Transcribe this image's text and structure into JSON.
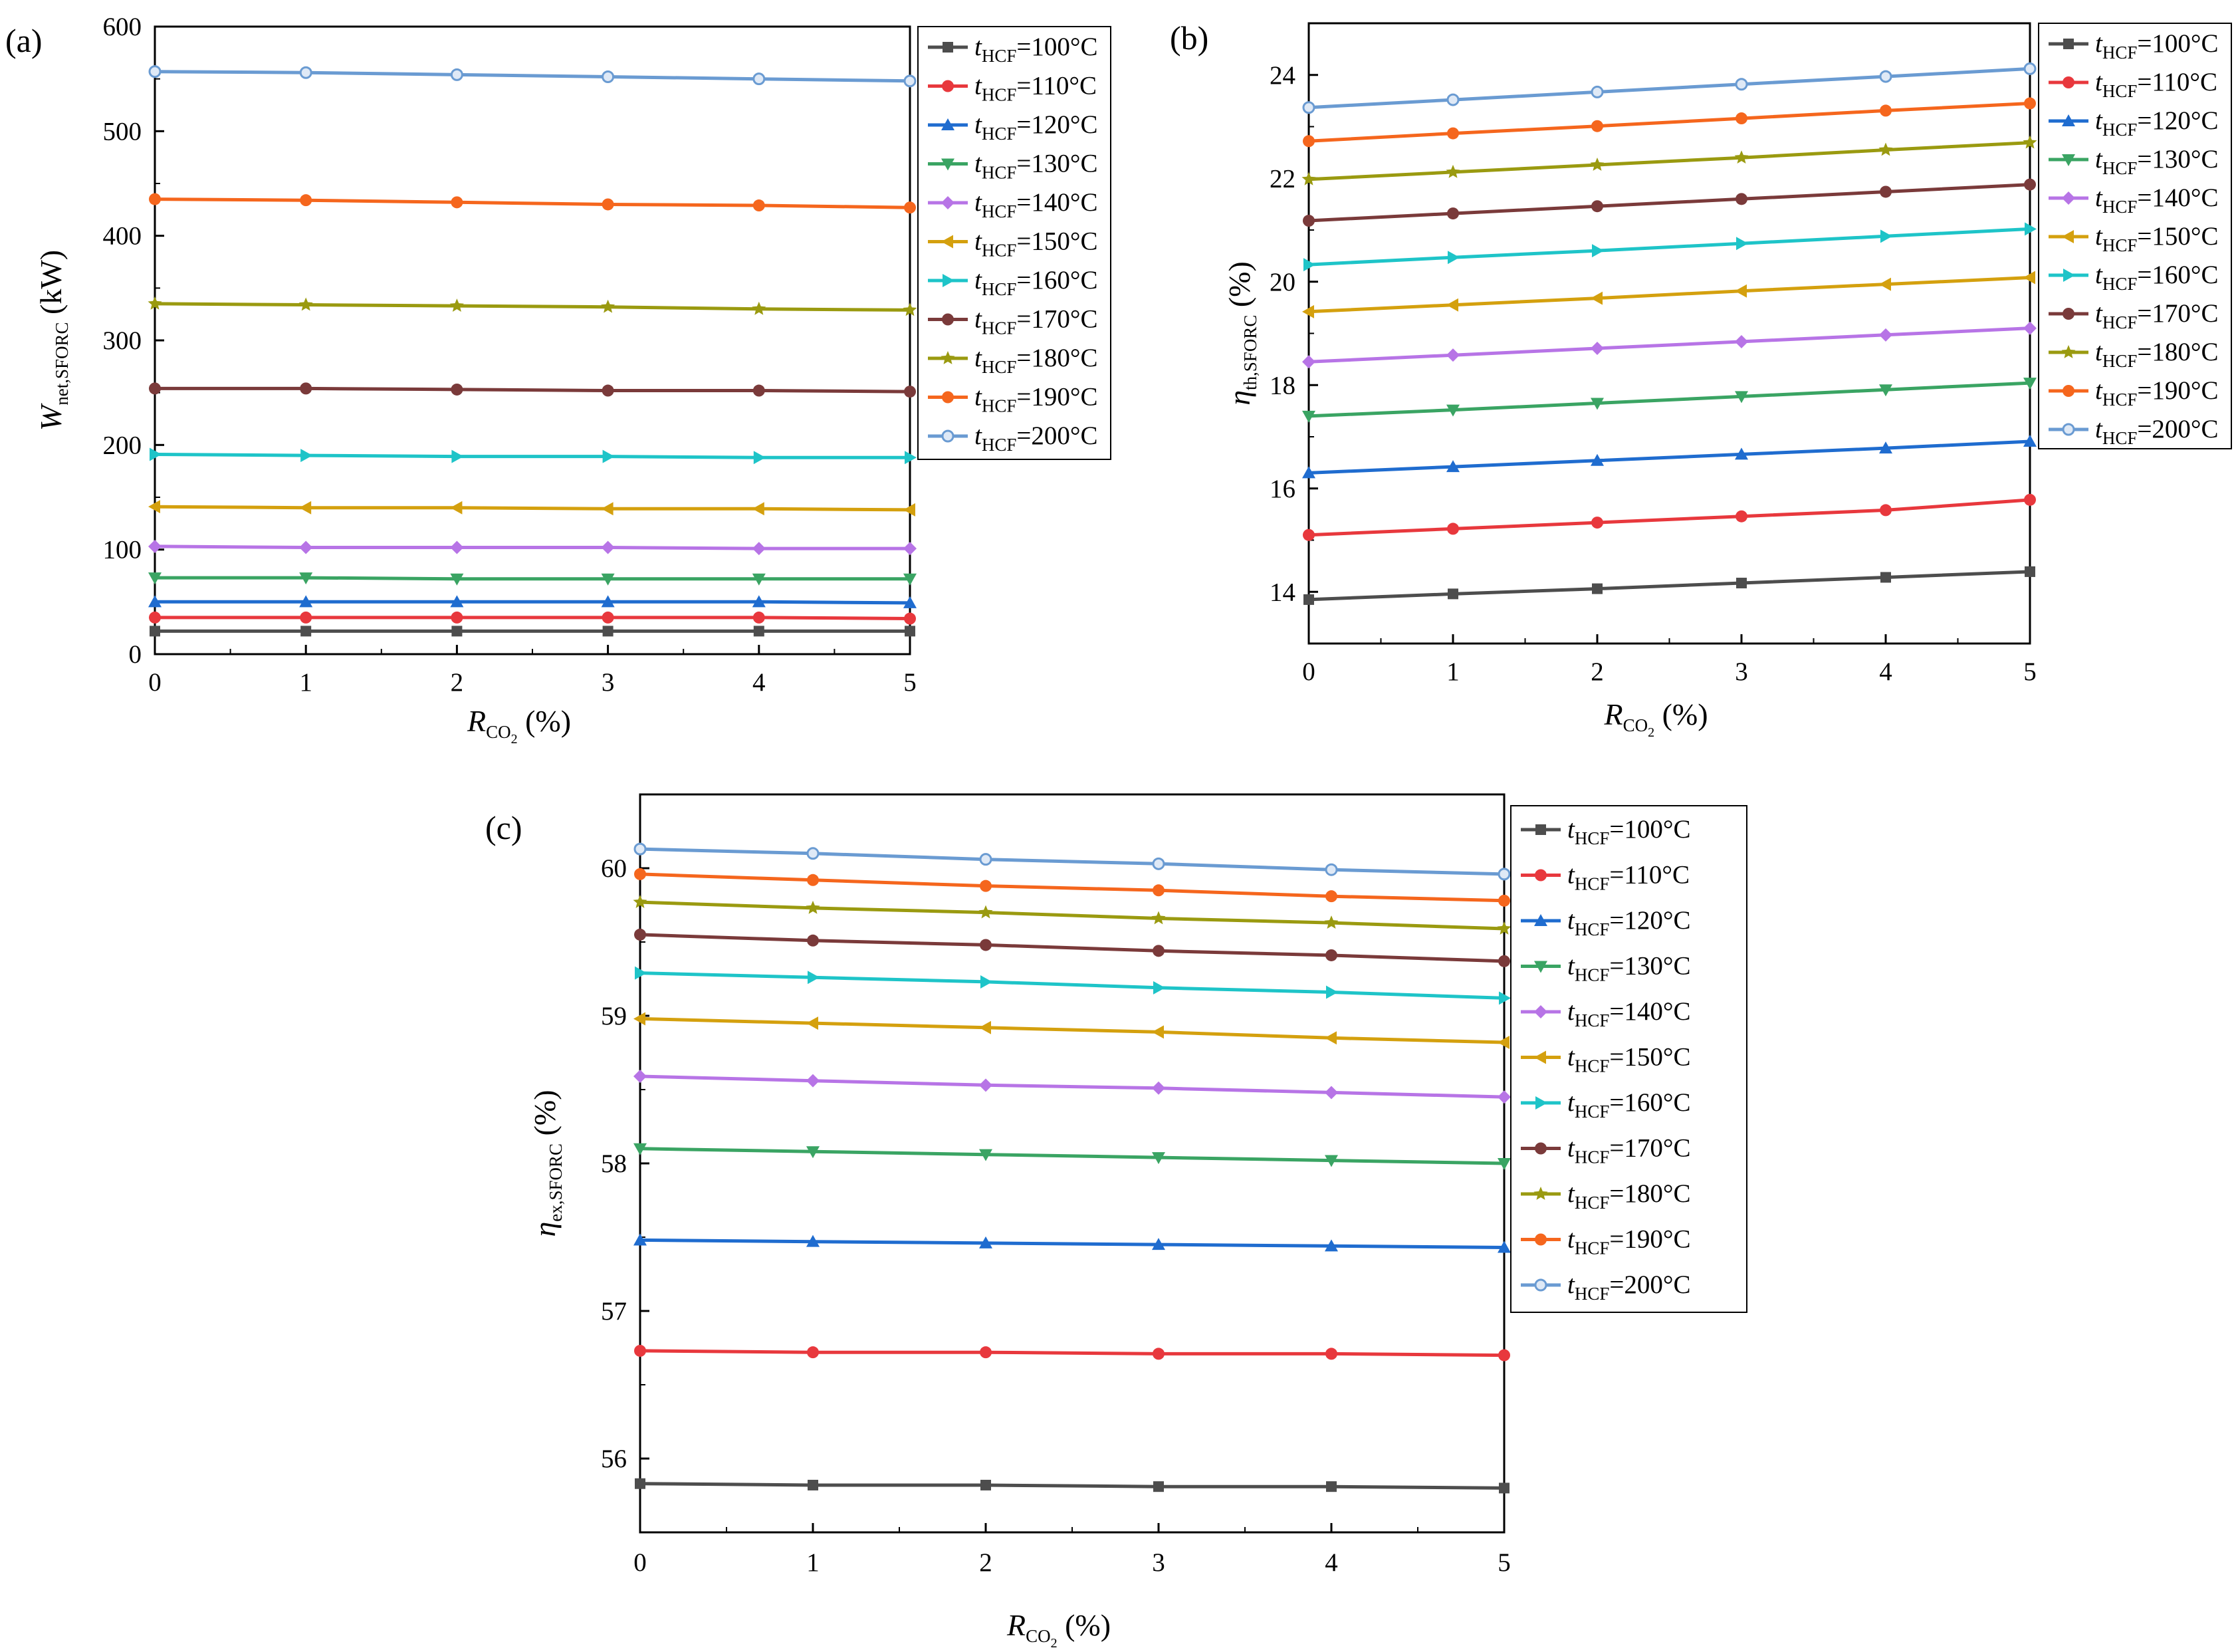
{
  "figure": {
    "legend_prefix": "t",
    "legend_sub": "HCF",
    "x_axis_label_main": "R",
    "x_axis_label_sub": "CO",
    "x_axis_label_sub2": "2",
    "x_axis_label_unit": " (%)"
  },
  "chart_data": [
    {
      "type": "line",
      "panel": "(a)",
      "ylabel_main": "W",
      "ylabel_sub": "net,SFORC",
      "ylabel_unit": " (kW)",
      "xlabel": "R_CO2 (%)",
      "xlim": [
        0,
        5
      ],
      "ylim": [
        0,
        600
      ],
      "xticks": [
        0,
        1,
        2,
        3,
        4,
        5
      ],
      "yticks": [
        0,
        100,
        200,
        300,
        400,
        500,
        600
      ],
      "x": [
        0,
        1,
        2,
        3,
        4,
        5
      ],
      "series": [
        {
          "name": "100°C",
          "color": "#4d4d4d",
          "marker": "square",
          "values": [
            22,
            22,
            22,
            22,
            22,
            22
          ]
        },
        {
          "name": "110°C",
          "color": "#e8383d",
          "marker": "circle",
          "values": [
            35,
            35,
            35,
            35,
            35,
            34
          ]
        },
        {
          "name": "120°C",
          "color": "#1f6ccf",
          "marker": "triangle-up",
          "values": [
            50,
            50,
            50,
            50,
            50,
            49
          ]
        },
        {
          "name": "130°C",
          "color": "#3aa463",
          "marker": "triangle-down",
          "values": [
            73,
            73,
            72,
            72,
            72,
            72
          ]
        },
        {
          "name": "140°C",
          "color": "#b774e6",
          "marker": "diamond",
          "values": [
            103,
            102,
            102,
            102,
            101,
            101
          ]
        },
        {
          "name": "150°C",
          "color": "#d4a00e",
          "marker": "triangle-left",
          "values": [
            141,
            140,
            140,
            139,
            139,
            138
          ]
        },
        {
          "name": "160°C",
          "color": "#1ec4c8",
          "marker": "triangle-right",
          "values": [
            191,
            190,
            189,
            189,
            188,
            188
          ]
        },
        {
          "name": "170°C",
          "color": "#7a3a3a",
          "marker": "circle",
          "values": [
            254,
            254,
            253,
            252,
            252,
            251
          ]
        },
        {
          "name": "180°C",
          "color": "#9a9a10",
          "marker": "star",
          "values": [
            335,
            334,
            333,
            332,
            330,
            329
          ]
        },
        {
          "name": "190°C",
          "color": "#f5661d",
          "marker": "circle",
          "values": [
            435,
            434,
            432,
            430,
            429,
            427
          ]
        },
        {
          "name": "200°C",
          "color": "#6a9bd2",
          "marker": "circle-open",
          "values": [
            557,
            556,
            554,
            552,
            550,
            548
          ]
        }
      ]
    },
    {
      "type": "line",
      "panel": "(b)",
      "ylabel_main": "η",
      "ylabel_sub": "th,SFORC",
      "ylabel_unit": " (%)",
      "xlabel": "R_CO2 (%)",
      "xlim": [
        0,
        5
      ],
      "ylim": [
        13,
        25
      ],
      "xticks": [
        0,
        1,
        2,
        3,
        4,
        5
      ],
      "yticks": [
        14,
        16,
        18,
        20,
        22,
        24
      ],
      "x": [
        0,
        1,
        2,
        3,
        4,
        5
      ],
      "series": [
        {
          "name": "100°C",
          "color": "#4d4d4d",
          "marker": "square",
          "values": [
            13.85,
            13.96,
            14.06,
            14.17,
            14.28,
            14.39
          ]
        },
        {
          "name": "110°C",
          "color": "#e8383d",
          "marker": "circle",
          "values": [
            15.1,
            15.22,
            15.34,
            15.46,
            15.58,
            15.78
          ]
        },
        {
          "name": "120°C",
          "color": "#1f6ccf",
          "marker": "triangle-up",
          "values": [
            16.3,
            16.42,
            16.54,
            16.66,
            16.78,
            16.91
          ]
        },
        {
          "name": "130°C",
          "color": "#3aa463",
          "marker": "triangle-down",
          "values": [
            17.4,
            17.52,
            17.65,
            17.78,
            17.91,
            18.04
          ]
        },
        {
          "name": "140°C",
          "color": "#b774e6",
          "marker": "diamond",
          "values": [
            18.45,
            18.58,
            18.71,
            18.84,
            18.97,
            19.1
          ]
        },
        {
          "name": "150°C",
          "color": "#d4a00e",
          "marker": "triangle-left",
          "values": [
            19.42,
            19.55,
            19.68,
            19.82,
            19.95,
            20.08
          ]
        },
        {
          "name": "160°C",
          "color": "#1ec4c8",
          "marker": "triangle-right",
          "values": [
            20.33,
            20.47,
            20.6,
            20.74,
            20.88,
            21.02
          ]
        },
        {
          "name": "170°C",
          "color": "#7a3a3a",
          "marker": "circle",
          "values": [
            21.18,
            21.32,
            21.46,
            21.6,
            21.74,
            21.88
          ]
        },
        {
          "name": "180°C",
          "color": "#9a9a10",
          "marker": "star",
          "values": [
            21.98,
            22.12,
            22.26,
            22.4,
            22.55,
            22.69
          ]
        },
        {
          "name": "190°C",
          "color": "#f5661d",
          "marker": "circle",
          "values": [
            22.72,
            22.87,
            23.01,
            23.16,
            23.31,
            23.45
          ]
        },
        {
          "name": "200°C",
          "color": "#6a9bd2",
          "marker": "circle-open",
          "values": [
            23.37,
            23.52,
            23.67,
            23.82,
            23.97,
            24.12
          ]
        }
      ]
    },
    {
      "type": "line",
      "panel": "(c)",
      "ylabel_main": "η",
      "ylabel_sub": "ex,SFORC",
      "ylabel_unit": " (%)",
      "xlabel": "R_CO2 (%)",
      "xlim": [
        0,
        5
      ],
      "ylim": [
        55.5,
        60.5
      ],
      "xticks": [
        0,
        1,
        2,
        3,
        4,
        5
      ],
      "yticks": [
        56,
        57,
        58,
        59,
        60
      ],
      "x": [
        0,
        1,
        2,
        3,
        4,
        5
      ],
      "series": [
        {
          "name": "100°C",
          "color": "#4d4d4d",
          "marker": "square",
          "values": [
            55.83,
            55.82,
            55.82,
            55.81,
            55.81,
            55.8
          ]
        },
        {
          "name": "110°C",
          "color": "#e8383d",
          "marker": "circle",
          "values": [
            56.73,
            56.72,
            56.72,
            56.71,
            56.71,
            56.7
          ]
        },
        {
          "name": "120°C",
          "color": "#1f6ccf",
          "marker": "triangle-up",
          "values": [
            57.48,
            57.47,
            57.46,
            57.45,
            57.44,
            57.43
          ]
        },
        {
          "name": "130°C",
          "color": "#3aa463",
          "marker": "triangle-down",
          "values": [
            58.1,
            58.08,
            58.06,
            58.04,
            58.02,
            58.0
          ]
        },
        {
          "name": "140°C",
          "color": "#b774e6",
          "marker": "diamond",
          "values": [
            58.59,
            58.56,
            58.53,
            58.51,
            58.48,
            58.45
          ]
        },
        {
          "name": "150°C",
          "color": "#d4a00e",
          "marker": "triangle-left",
          "values": [
            58.98,
            58.95,
            58.92,
            58.89,
            58.85,
            58.82
          ]
        },
        {
          "name": "160°C",
          "color": "#1ec4c8",
          "marker": "triangle-right",
          "values": [
            59.29,
            59.26,
            59.23,
            59.19,
            59.16,
            59.12
          ]
        },
        {
          "name": "170°C",
          "color": "#7a3a3a",
          "marker": "circle",
          "values": [
            59.55,
            59.51,
            59.48,
            59.44,
            59.41,
            59.37
          ]
        },
        {
          "name": "180°C",
          "color": "#9a9a10",
          "marker": "star",
          "values": [
            59.77,
            59.73,
            59.7,
            59.66,
            59.63,
            59.59
          ]
        },
        {
          "name": "190°C",
          "color": "#f5661d",
          "marker": "circle",
          "values": [
            59.96,
            59.92,
            59.88,
            59.85,
            59.81,
            59.78
          ]
        },
        {
          "name": "200°C",
          "color": "#6a9bd2",
          "marker": "circle-open",
          "values": [
            60.13,
            60.1,
            60.06,
            60.03,
            59.99,
            59.96
          ]
        }
      ]
    }
  ]
}
